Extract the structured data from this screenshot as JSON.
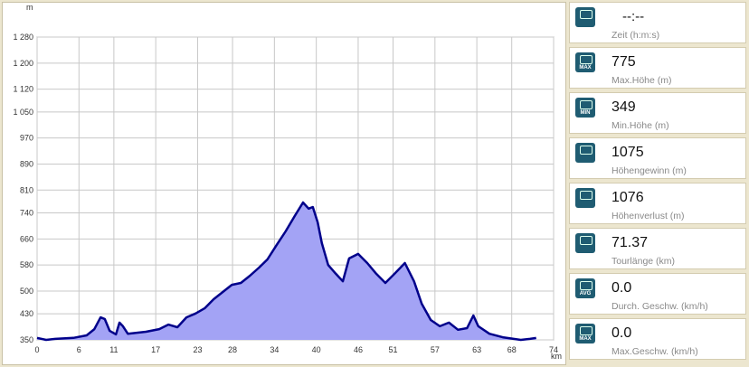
{
  "chart_data": {
    "type": "area",
    "y_unit": "m",
    "x_unit": "km",
    "x": [
      0,
      1.3,
      2.6,
      5.2,
      7.1,
      8.2,
      9.1,
      9.7,
      10.4,
      11.3,
      11.8,
      12.3,
      13.0,
      15.6,
      17.5,
      18.8,
      20.1,
      21.4,
      22.7,
      24.0,
      25.3,
      26.6,
      27.9,
      29.2,
      30.5,
      31.8,
      33.0,
      34.3,
      35.6,
      36.9,
      38.1,
      38.9,
      39.5,
      40.2,
      40.8,
      41.7,
      42.8,
      43.8,
      44.7,
      46.0,
      47.3,
      48.6,
      49.9,
      51.2,
      52.7,
      54.0,
      55.1,
      56.4,
      57.7,
      59.0,
      60.3,
      61.6,
      62.5,
      63.2,
      64.8,
      66.7,
      69.3,
      70.6,
      71.5
    ],
    "values": [
      356,
      350,
      353,
      356,
      364,
      383,
      419,
      414,
      378,
      367,
      403,
      392,
      369,
      375,
      383,
      397,
      389,
      419,
      431,
      447,
      475,
      497,
      519,
      525,
      547,
      572,
      597,
      641,
      683,
      730,
      772,
      753,
      758,
      711,
      647,
      580,
      553,
      530,
      600,
      614,
      586,
      553,
      525,
      553,
      586,
      530,
      461,
      411,
      392,
      403,
      381,
      386,
      425,
      392,
      369,
      358,
      350,
      353,
      356
    ],
    "color": "#00008b",
    "fill": "#a3a3f5",
    "xlim": [
      0,
      74
    ],
    "xticks": [
      0,
      6,
      11,
      17,
      23,
      28,
      34,
      40,
      46,
      51,
      57,
      63,
      68,
      74
    ],
    "ylim": [
      350,
      1280
    ],
    "yticks": [
      350,
      430,
      500,
      580,
      660,
      740,
      810,
      890,
      970,
      {
        "value": 1050,
        "label": "1 050"
      },
      {
        "value": 1120,
        "label": "1 120"
      },
      {
        "value": 1200,
        "label": "1 200"
      },
      {
        "value": 1280,
        "label": "1 280"
      }
    ],
    "grid": true
  },
  "stats": [
    {
      "value": "--:--",
      "label": "Zeit (h:m:s)"
    },
    {
      "icon": "MAX",
      "value": "775",
      "label": "Max.Höhe (m)"
    },
    {
      "icon": "MIN",
      "value": "349",
      "label": "Min.Höhe (m)"
    },
    {
      "value": "1075",
      "label": "Höhengewinn (m)"
    },
    {
      "value": "1076",
      "label": "Höhenverlust (m)"
    },
    {
      "value": "71.37",
      "label": "Tourlänge (km)"
    },
    {
      "icon": "AVG",
      "value": "0.0",
      "label": "Durch. Geschw. (km/h)"
    },
    {
      "icon": "MAX",
      "value": "0.0",
      "label": "Max.Geschw. (km/h)"
    }
  ]
}
